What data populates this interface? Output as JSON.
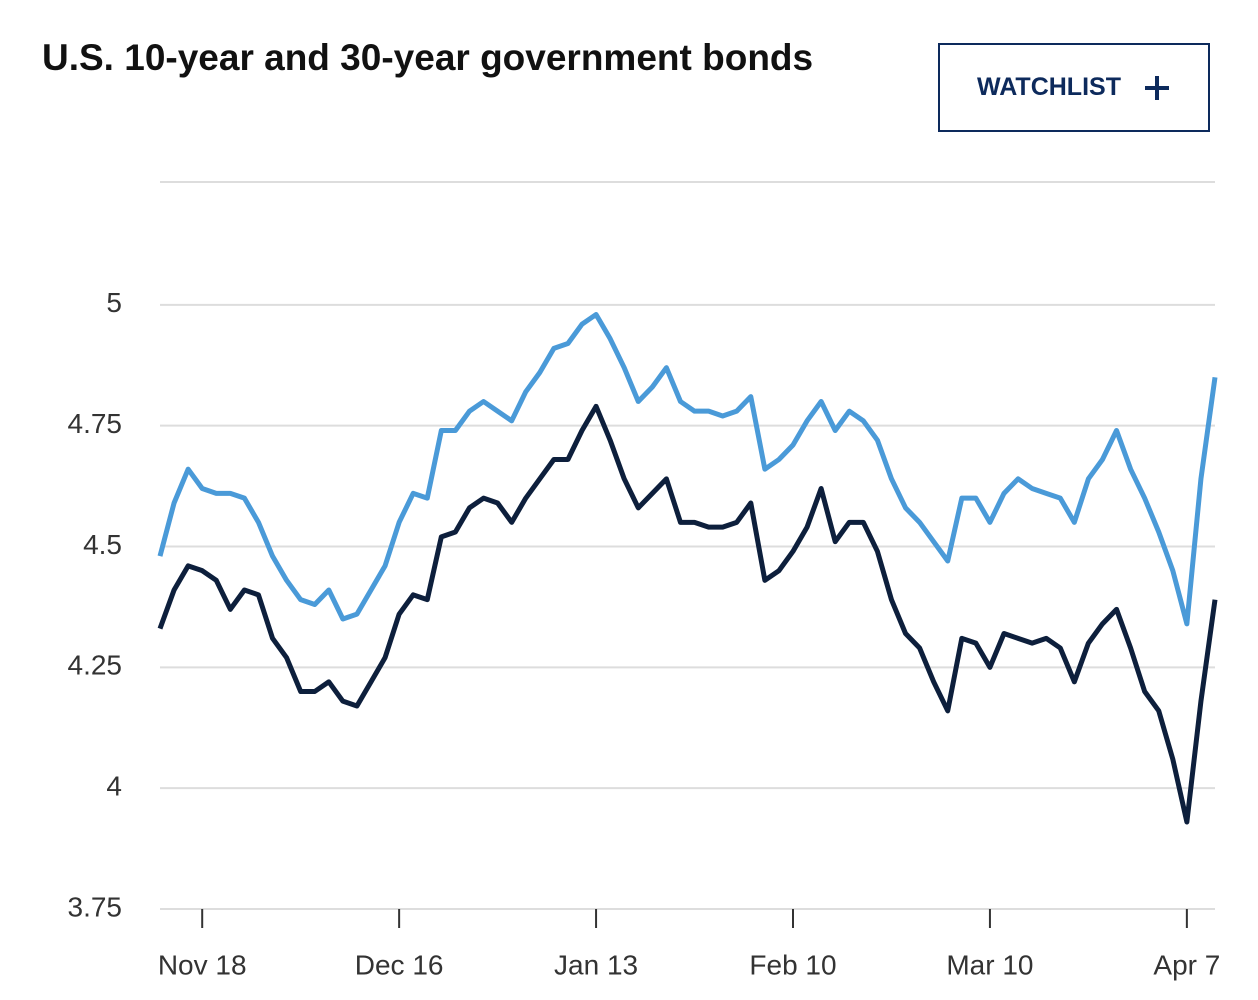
{
  "watchlist_button": "WATCHLIST",
  "chart_data": {
    "type": "line",
    "title": "U.S. 10-year and 30-year government bonds",
    "categories": [
      null,
      null,
      null,
      "Nov 18",
      null,
      null,
      null,
      null,
      null,
      null,
      null,
      null,
      null,
      null,
      null,
      null,
      null,
      "Dec 16",
      null,
      null,
      null,
      null,
      null,
      null,
      null,
      null,
      null,
      null,
      null,
      null,
      null,
      "Jan 13",
      null,
      null,
      null,
      null,
      null,
      null,
      null,
      null,
      null,
      null,
      null,
      null,
      null,
      "Feb 10",
      null,
      null,
      null,
      null,
      null,
      null,
      null,
      null,
      null,
      null,
      null,
      null,
      null,
      "Mar 10",
      null,
      null,
      null,
      null,
      null,
      null,
      null,
      null,
      null,
      null,
      null,
      null,
      null,
      "Apr 7",
      null,
      null
    ],
    "series": [
      {
        "color": "#4a9ad8",
        "values": [
          4.48,
          4.59,
          4.66,
          4.62,
          4.61,
          4.61,
          4.6,
          4.55,
          4.48,
          4.43,
          4.39,
          4.38,
          4.41,
          4.35,
          4.36,
          4.41,
          4.46,
          4.55,
          4.61,
          4.6,
          4.74,
          4.74,
          4.78,
          4.8,
          4.78,
          4.76,
          4.82,
          4.86,
          4.91,
          4.92,
          4.96,
          4.98,
          4.93,
          4.87,
          4.8,
          4.83,
          4.87,
          4.8,
          4.78,
          4.78,
          4.77,
          4.78,
          4.81,
          4.66,
          4.68,
          4.71,
          4.76,
          4.8,
          4.74,
          4.78,
          4.76,
          4.72,
          4.64,
          4.58,
          4.55,
          4.51,
          4.47,
          4.6,
          4.6,
          4.55,
          4.61,
          4.64,
          4.62,
          4.61,
          4.6,
          4.55,
          4.64,
          4.68,
          4.74,
          4.66,
          4.6,
          4.53,
          4.45,
          4.34,
          4.64,
          4.85
        ]
      },
      {
        "color": "#0d1f3c",
        "values": [
          4.33,
          4.41,
          4.46,
          4.45,
          4.43,
          4.37,
          4.41,
          4.4,
          4.31,
          4.27,
          4.2,
          4.2,
          4.22,
          4.18,
          4.17,
          4.22,
          4.27,
          4.36,
          4.4,
          4.39,
          4.52,
          4.53,
          4.58,
          4.6,
          4.59,
          4.55,
          4.6,
          4.64,
          4.68,
          4.68,
          4.74,
          4.79,
          4.72,
          4.64,
          4.58,
          4.61,
          4.64,
          4.55,
          4.55,
          4.54,
          4.54,
          4.55,
          4.59,
          4.43,
          4.45,
          4.49,
          4.54,
          4.62,
          4.51,
          4.55,
          4.55,
          4.49,
          4.39,
          4.32,
          4.29,
          4.22,
          4.16,
          4.31,
          4.3,
          4.25,
          4.32,
          4.31,
          4.3,
          4.31,
          4.29,
          4.22,
          4.3,
          4.34,
          4.37,
          4.29,
          4.2,
          4.16,
          4.06,
          3.93,
          4.18,
          4.39
        ]
      }
    ],
    "ylim": [
      3.75,
      5.25
    ],
    "yticks": [
      3.75,
      4,
      4.25,
      4.5,
      4.75,
      5
    ],
    "grid": true
  }
}
